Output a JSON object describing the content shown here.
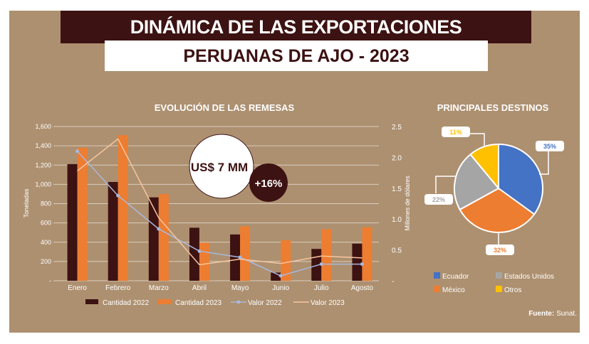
{
  "title": "DINÁMICA DE LAS EXPORTACIONES",
  "subtitle": "PERUANAS DE AJO - 2023",
  "source_label": "Fuente:",
  "source_value": " Sunat.",
  "chart_data": [
    {
      "type": "bar",
      "title": "EVOLUCIÓN DE LAS REMESAS",
      "categories": [
        "Enero",
        "Febrero",
        "Marzo",
        "Abril",
        "Mayo",
        "Junio",
        "Julio",
        "Agosto"
      ],
      "ylabel": "Toneladas",
      "y2label": "Millones de dólares",
      "ylim": [
        0,
        1600
      ],
      "y2lim": [
        0,
        2.5
      ],
      "yticks": [
        "-",
        "200",
        "400",
        "600",
        "800",
        "1,000",
        "1,200",
        "1,400",
        "1,600"
      ],
      "y2ticks": [
        "-",
        "0.5",
        "1.0",
        "1.5",
        "2.0",
        "2.5"
      ],
      "grid": true,
      "legend": "bottom",
      "series": [
        {
          "name": "Cantidad 2022",
          "kind": "bar",
          "axis": "left",
          "color": "#3d1212",
          "values": [
            1210,
            1025,
            865,
            550,
            480,
            85,
            330,
            385
          ]
        },
        {
          "name": "Cantidad 2023",
          "kind": "bar",
          "axis": "left",
          "color": "#ed7d31",
          "values": [
            1380,
            1510,
            900,
            395,
            565,
            420,
            535,
            555
          ]
        },
        {
          "name": "Valor 2022",
          "kind": "line",
          "axis": "right",
          "color": "#a9b8dc",
          "markers": true,
          "values": [
            2.1,
            1.38,
            0.84,
            0.48,
            0.38,
            0.08,
            0.27,
            0.27
          ]
        },
        {
          "name": "Valor 2023",
          "kind": "line",
          "axis": "right",
          "color": "#f6c6a0",
          "markers": false,
          "values": [
            1.78,
            2.3,
            1.02,
            0.26,
            0.35,
            0.28,
            0.4,
            0.37
          ]
        }
      ],
      "annotations": {
        "total": "US$ 7 MM",
        "growth": "+16%"
      }
    },
    {
      "type": "pie",
      "title": "PRINCIPALES DESTINOS",
      "legend": "bottom",
      "slices": [
        {
          "name": "Ecuador",
          "value": 35,
          "label": "35%",
          "color": "#4472c4"
        },
        {
          "name": "México",
          "value": 32,
          "label": "32%",
          "color": "#ed7d31"
        },
        {
          "name": "Estados Unidos",
          "value": 22,
          "label": "22%",
          "color": "#a5a5a5"
        },
        {
          "name": "Otros",
          "value": 11,
          "label": "11%",
          "color": "#ffc000"
        }
      ]
    }
  ]
}
